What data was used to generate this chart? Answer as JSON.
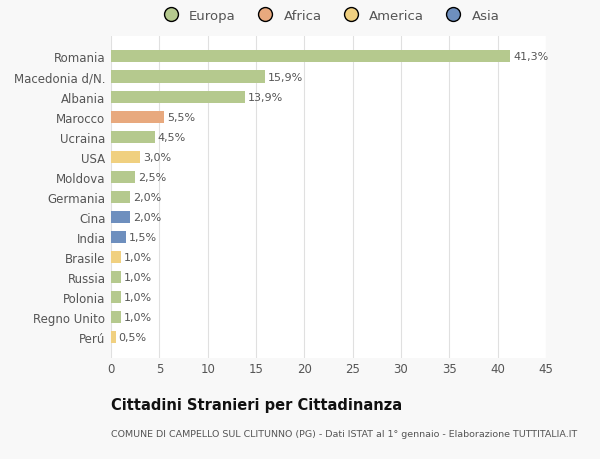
{
  "categories": [
    "Romania",
    "Macedonia d/N.",
    "Albania",
    "Marocco",
    "Ucraina",
    "USA",
    "Moldova",
    "Germania",
    "Cina",
    "India",
    "Brasile",
    "Russia",
    "Polonia",
    "Regno Unito",
    "Perú"
  ],
  "values": [
    41.3,
    15.9,
    13.9,
    5.5,
    4.5,
    3.0,
    2.5,
    2.0,
    2.0,
    1.5,
    1.0,
    1.0,
    1.0,
    1.0,
    0.5
  ],
  "labels": [
    "41,3%",
    "15,9%",
    "13,9%",
    "5,5%",
    "4,5%",
    "3,0%",
    "2,5%",
    "2,0%",
    "2,0%",
    "1,5%",
    "1,0%",
    "1,0%",
    "1,0%",
    "1,0%",
    "0,5%"
  ],
  "colors": [
    "#b5c98e",
    "#b5c98e",
    "#b5c98e",
    "#e8a97e",
    "#b5c98e",
    "#f0d080",
    "#b5c98e",
    "#b5c98e",
    "#6e8fbe",
    "#6e8fbe",
    "#f0d080",
    "#b5c98e",
    "#b5c98e",
    "#b5c98e",
    "#f0d080"
  ],
  "legend_labels": [
    "Europa",
    "Africa",
    "America",
    "Asia"
  ],
  "legend_colors": [
    "#b5c98e",
    "#e8a97e",
    "#f0d080",
    "#6e8fbe"
  ],
  "title": "Cittadini Stranieri per Cittadinanza",
  "subtitle": "COMUNE DI CAMPELLO SUL CLITUNNO (PG) - Dati ISTAT al 1° gennaio - Elaborazione TUTTITALIA.IT",
  "xlim": [
    0,
    45
  ],
  "xticks": [
    0,
    5,
    10,
    15,
    20,
    25,
    30,
    35,
    40,
    45
  ],
  "background_color": "#f8f8f8",
  "bar_background": "#ffffff",
  "grid_color": "#e0e0e0"
}
